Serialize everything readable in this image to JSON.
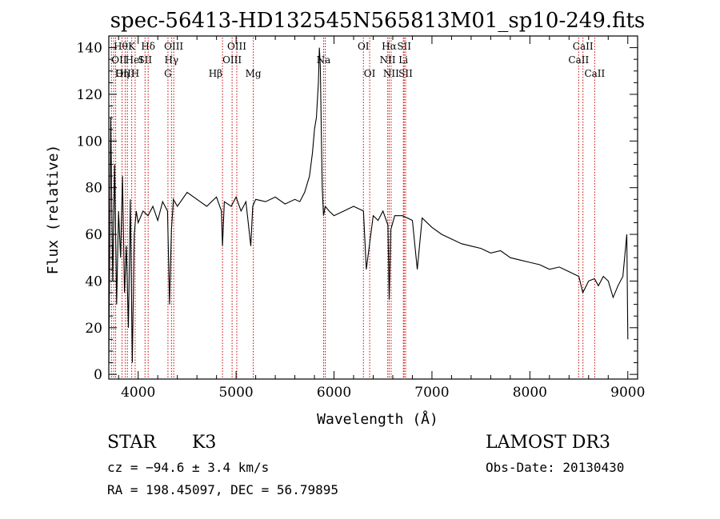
{
  "chart_data": {
    "type": "line",
    "title": "spec-56413-HD132545N565813M01_sp10-249.fits",
    "xlabel": "Wavelength (Å)",
    "ylabel": "Flux (relative)",
    "xlim": [
      3700,
      9100
    ],
    "ylim": [
      -2,
      145
    ],
    "x_ticks": [
      4000,
      5000,
      6000,
      7000,
      8000,
      9000
    ],
    "y_ticks": [
      0,
      20,
      40,
      60,
      80,
      100,
      120,
      140
    ],
    "line_color": "#000000",
    "marker_color": "#cc0000",
    "grid": false,
    "series": [
      {
        "x": [
          3700,
          3720,
          3740,
          3760,
          3780,
          3800,
          3820,
          3840,
          3860,
          3880,
          3900,
          3920,
          3940,
          3960,
          3980,
          4000,
          4050,
          4100,
          4150,
          4200,
          4250,
          4300,
          4320,
          4340,
          4360,
          4400,
          4500,
          4600,
          4700,
          4800,
          4850,
          4861,
          4880,
          4950,
          5000,
          5050,
          5100,
          5150,
          5170,
          5200,
          5300,
          5400,
          5500,
          5600,
          5650,
          5700,
          5750,
          5780,
          5800,
          5820,
          5840,
          5850,
          5860,
          5870,
          5880,
          5893,
          5910,
          5950,
          6000,
          6100,
          6200,
          6300,
          6330,
          6400,
          6450,
          6500,
          6550,
          6563,
          6580,
          6620,
          6700,
          6800,
          6850,
          6900,
          7000,
          7100,
          7200,
          7300,
          7400,
          7500,
          7600,
          7700,
          7800,
          7900,
          8000,
          8100,
          8200,
          8300,
          8400,
          8500,
          8540,
          8600,
          8660,
          8700,
          8750,
          8800,
          8850,
          8900,
          8950,
          8990,
          9000
        ],
        "y": [
          5,
          110,
          40,
          90,
          30,
          70,
          50,
          85,
          35,
          55,
          20,
          75,
          5,
          60,
          70,
          65,
          70,
          68,
          72,
          66,
          74,
          70,
          30,
          62,
          75,
          72,
          78,
          75,
          72,
          76,
          70,
          55,
          74,
          72,
          76,
          70,
          74,
          55,
          72,
          75,
          74,
          76,
          73,
          75,
          74,
          78,
          85,
          95,
          105,
          110,
          125,
          140,
          132,
          105,
          80,
          68,
          72,
          70,
          68,
          70,
          72,
          70,
          45,
          68,
          66,
          70,
          64,
          32,
          62,
          68,
          68,
          66,
          45,
          67,
          63,
          60,
          58,
          56,
          55,
          54,
          52,
          53,
          50,
          49,
          48,
          47,
          45,
          46,
          44,
          42,
          35,
          40,
          41,
          38,
          42,
          40,
          33,
          38,
          42,
          60,
          15
        ]
      }
    ],
    "line_markers": [
      {
        "x": 3727,
        "label": "OII",
        "row": 1,
        "align": "start"
      },
      {
        "x": 3750,
        "label": "Hθ",
        "row": 0,
        "align": "start"
      },
      {
        "x": 3770,
        "label": "OIII",
        "row": 2,
        "align": "start"
      },
      {
        "x": 3835,
        "label": "Hη",
        "row": 2,
        "align": "middle"
      },
      {
        "x": 3869,
        "label": "HeI",
        "row": 1,
        "align": "start"
      },
      {
        "x": 3890,
        "label": "",
        "row": 0,
        "align": "start"
      },
      {
        "x": 3934,
        "label": "K",
        "row": 0,
        "align": "middle"
      },
      {
        "x": 3969,
        "label": "H",
        "row": 2,
        "align": "middle"
      },
      {
        "x": 4070,
        "label": "SII",
        "row": 1,
        "align": "middle"
      },
      {
        "x": 4102,
        "label": "Hδ",
        "row": 0,
        "align": "middle"
      },
      {
        "x": 4304,
        "label": "G",
        "row": 2,
        "align": "middle"
      },
      {
        "x": 4340,
        "label": "Hγ",
        "row": 1,
        "align": "middle"
      },
      {
        "x": 4363,
        "label": "OIII",
        "row": 0,
        "align": "middle"
      },
      {
        "x": 4861,
        "label": "Hβ",
        "row": 2,
        "align": "end"
      },
      {
        "x": 4959,
        "label": "OIII",
        "row": 1,
        "align": "middle"
      },
      {
        "x": 5007,
        "label": "OIII",
        "row": 0,
        "align": "middle"
      },
      {
        "x": 5175,
        "label": "Mg",
        "row": 2,
        "align": "middle"
      },
      {
        "x": 5893,
        "label": "Na",
        "row": 1,
        "align": "middle"
      },
      {
        "x": 5910,
        "label": "",
        "row": 0,
        "align": "middle"
      },
      {
        "x": 6300,
        "label": "OI",
        "row": 0,
        "align": "middle"
      },
      {
        "x": 6364,
        "label": "OI",
        "row": 2,
        "align": "middle"
      },
      {
        "x": 6548,
        "label": "NII",
        "row": 1,
        "align": "middle"
      },
      {
        "x": 6563,
        "label": "Hα",
        "row": 0,
        "align": "middle"
      },
      {
        "x": 6583,
        "label": "NII",
        "row": 2,
        "align": "middle"
      },
      {
        "x": 6708,
        "label": "Li",
        "row": 1,
        "align": "middle"
      },
      {
        "x": 6716,
        "label": "SII",
        "row": 0,
        "align": "middle"
      },
      {
        "x": 6731,
        "label": "SII",
        "row": 2,
        "align": "middle"
      },
      {
        "x": 8498,
        "label": "CaII",
        "row": 1,
        "align": "middle"
      },
      {
        "x": 8542,
        "label": "CaII",
        "row": 0,
        "align": "middle"
      },
      {
        "x": 8662,
        "label": "CaII",
        "row": 2,
        "align": "middle"
      }
    ]
  },
  "info": {
    "object_class": "STAR",
    "subclass": "K3",
    "cz": "cz = −94.6 ± 3.4 km/s",
    "radec": "RA = 198.45097, DEC =  56.79895",
    "survey": "LAMOST DR3",
    "obs_date": "Obs-Date: 20130430"
  }
}
